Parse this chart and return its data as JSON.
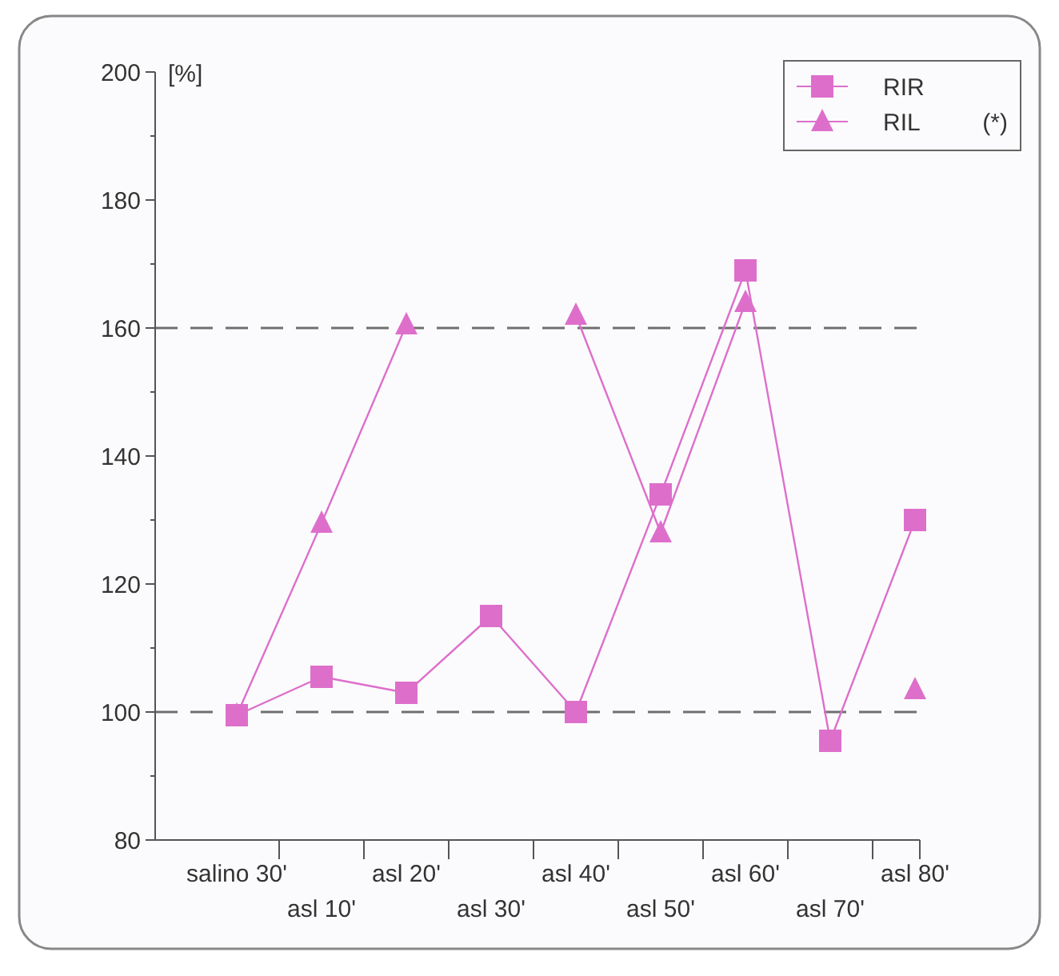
{
  "chart_data": {
    "type": "line",
    "ylabel": "[%]",
    "categories": [
      "salino 30'",
      "asl 10'",
      "asl 20'",
      "asl 30'",
      "asl 40'",
      "asl 50'",
      "asl 60'",
      "asl 70'",
      "asl 80'"
    ],
    "series": [
      {
        "name": "RIR",
        "color": "#dd6fcb",
        "marker": "square",
        "values": [
          99.5,
          105.5,
          103,
          115,
          100,
          134,
          169,
          95.5,
          130
        ]
      },
      {
        "name": "RIL",
        "color": "#dd6fcb",
        "marker": "triangle",
        "values": [
          99.5,
          129.5,
          160.5,
          null,
          162,
          128,
          164,
          null,
          103.5
        ]
      }
    ],
    "ylim": [
      80,
      200
    ],
    "yticks": [
      80,
      100,
      120,
      140,
      160,
      180,
      200
    ],
    "ref_lines": [
      {
        "axis": "y",
        "value": 160,
        "color": "#707070",
        "line_style": "dashed"
      },
      {
        "axis": "y",
        "value": 100,
        "color": "#707070",
        "line_style": "dashed"
      }
    ],
    "annotations": [
      "(*)"
    ],
    "legend": "top right",
    "grid": false
  }
}
